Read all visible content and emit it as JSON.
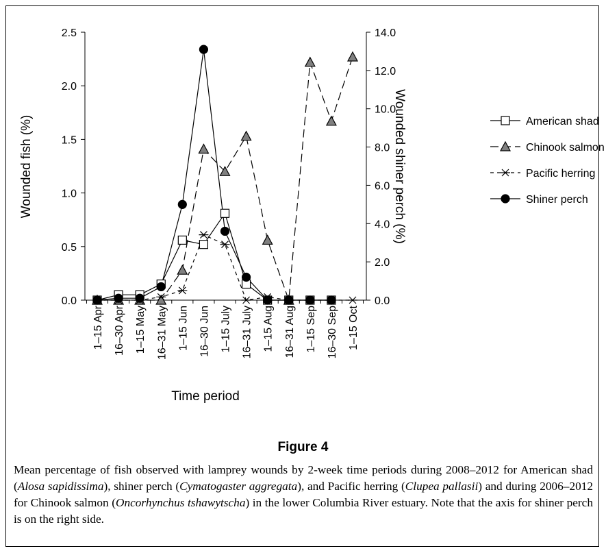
{
  "chart_data": {
    "type": "line",
    "figure_label": "Figure 4",
    "caption": [
      {
        "text": "Mean percentage of fish observed with lamprey wounds by 2-week time periods during 2008–2012 for American shad (",
        "italic": false
      },
      {
        "text": "Alosa sapidissima",
        "italic": true
      },
      {
        "text": "), shiner perch (",
        "italic": false
      },
      {
        "text": "Cymatogaster aggregata",
        "italic": true
      },
      {
        "text": "), and Pacific herring (",
        "italic": false
      },
      {
        "text": "Clupea pallasii",
        "italic": true
      },
      {
        "text": ") and during 2006–2012 for Chinook salmon (",
        "italic": false
      },
      {
        "text": "Oncorhynchus tshawytscha",
        "italic": true
      },
      {
        "text": ") in the lower Columbia River estuary. Note that the axis for shiner perch is on the right side.",
        "italic": false
      }
    ],
    "xlabel": "Time period",
    "ylabel": "Wounded fish (%)",
    "y2label": "Wounded shiner perch (%)",
    "categories": [
      "1–15 Apr",
      "16–30 Apr",
      "1–15 May",
      "16–31 May",
      "1–15 Jun",
      "16–30 Jun",
      "1–15 July",
      "16–31 July",
      "1–15 Aug",
      "16–31 Aug",
      "1–15 Sep",
      "16–30 Sep",
      "1–15 Oct"
    ],
    "ylim": [
      0,
      2.5
    ],
    "yticks": [
      {
        "value": 0,
        "label": "0.0"
      },
      {
        "value": 0.5,
        "label": "0.5"
      },
      {
        "value": 1,
        "label": "1.0"
      },
      {
        "value": 1.5,
        "label": "1.5"
      },
      {
        "value": 2,
        "label": "2.0"
      },
      {
        "value": 2.5,
        "label": "2.5"
      }
    ],
    "y2lim": [
      0,
      14
    ],
    "y2ticks": [
      {
        "value": 0,
        "label": "0.0"
      },
      {
        "value": 2,
        "label": "2.0"
      },
      {
        "value": 4,
        "label": "4.0"
      },
      {
        "value": 6,
        "label": "6.0"
      },
      {
        "value": 8,
        "label": "8.0"
      },
      {
        "value": 10,
        "label": "10.0"
      },
      {
        "value": 12,
        "label": "12.0"
      },
      {
        "value": 14,
        "label": "14.0"
      }
    ],
    "legend": "right",
    "series": [
      {
        "name": "American shad",
        "color": "#000000",
        "marker": "square",
        "dash": "solid",
        "values": [
          0,
          0.05,
          0.05,
          0.15,
          0.56,
          0.52,
          0.81,
          0.15,
          0,
          0,
          0,
          0,
          null
        ]
      },
      {
        "name": "Chinook salmon",
        "color": "#808080",
        "marker": "triangle",
        "dash": "long",
        "values": [
          0,
          0,
          0,
          0,
          0.28,
          1.41,
          1.2,
          1.53,
          0.56,
          0,
          2.22,
          1.67,
          2.27
        ]
      },
      {
        "name": "Pacific herring",
        "color": "#000000",
        "marker": "asterisk",
        "dash": "short",
        "values": [
          0,
          0,
          0,
          0.03,
          0.09,
          0.61,
          0.52,
          0,
          0.03,
          0,
          0,
          0,
          0
        ]
      },
      {
        "name": "Shiner perch",
        "color": "#000000",
        "marker": "circle",
        "dash": "solid",
        "axis": "y2",
        "values": [
          0,
          0.1,
          0.1,
          0.7,
          5.0,
          13.1,
          3.6,
          1.2,
          0,
          0,
          0,
          0,
          null
        ]
      }
    ]
  }
}
